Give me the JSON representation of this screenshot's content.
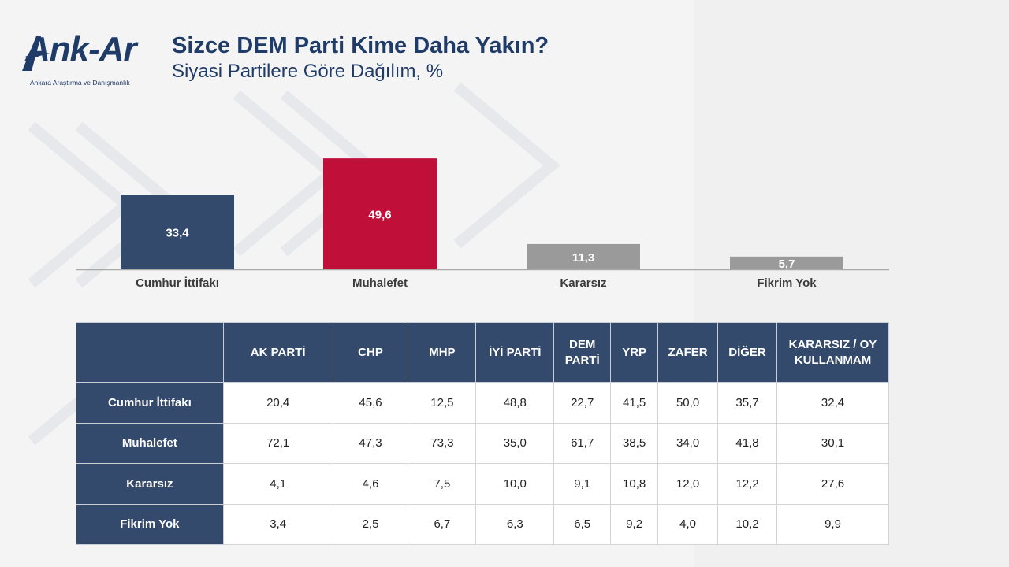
{
  "header": {
    "logo_text": "Ank-Ar",
    "logo_subtitle": "Ankara Araştırma ve Danışmanlık",
    "title": "Sizce DEM Parti Kime Daha Yakın?",
    "subtitle": "Siyasi Partilere Göre Dağılım, %"
  },
  "colors": {
    "navy": "#334a6d",
    "crimson": "#c0103a",
    "gray": "#9a9a9a",
    "title": "#1f3b67"
  },
  "chart_data": {
    "type": "bar",
    "categories": [
      "Cumhur İttifakı",
      "Muhalefet",
      "Kararsız",
      "Fikrim Yok"
    ],
    "values": [
      33.4,
      49.6,
      11.3,
      5.7
    ],
    "value_labels": [
      "33,4",
      "49,6",
      "11,3",
      "5,7"
    ],
    "bar_colors": [
      "#334a6d",
      "#c0103a",
      "#9a9a9a",
      "#9a9a9a"
    ],
    "title": "Sizce DEM Parti Kime Daha Yakın?",
    "subtitle": "Siyasi Partilere Göre Dağılım, %",
    "xlabel": "",
    "ylabel": "",
    "ylim": [
      0,
      50
    ],
    "grid": false,
    "legend": "none"
  },
  "table": {
    "columns": [
      "AK PARTİ",
      "CHP",
      "MHP",
      "İYİ PARTİ",
      "DEM PARTİ",
      "YRP",
      "ZAFER",
      "DİĞER",
      "KARARSIZ / OY KULLANMAM"
    ],
    "rows": [
      {
        "label": "Cumhur İttifakı",
        "values": [
          "20,4",
          "45,6",
          "12,5",
          "48,8",
          "22,7",
          "41,5",
          "50,0",
          "35,7",
          "32,4"
        ]
      },
      {
        "label": "Muhalefet",
        "values": [
          "72,1",
          "47,3",
          "73,3",
          "35,0",
          "61,7",
          "38,5",
          "34,0",
          "41,8",
          "30,1"
        ]
      },
      {
        "label": "Kararsız",
        "values": [
          "4,1",
          "4,6",
          "7,5",
          "10,0",
          "9,1",
          "10,8",
          "12,0",
          "12,2",
          "27,6"
        ]
      },
      {
        "label": "Fikrim Yok",
        "values": [
          "3,4",
          "2,5",
          "6,7",
          "6,3",
          "6,5",
          "9,2",
          "4,0",
          "10,2",
          "9,9"
        ]
      }
    ]
  }
}
